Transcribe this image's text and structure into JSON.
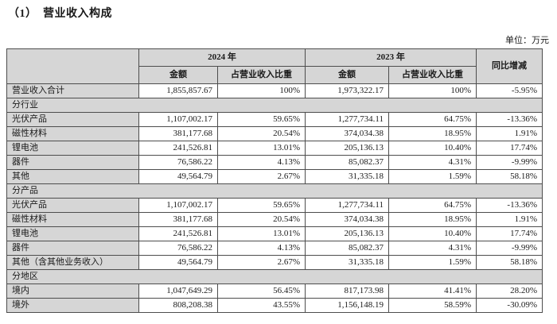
{
  "page": {
    "title": "（1）　营业收入构成",
    "unit_label": "单位：万元"
  },
  "table": {
    "header": {
      "year_2024": "2024 年",
      "year_2023": "2023 年",
      "amount": "金额",
      "ratio": "占营业收入比重",
      "yoy": "同比增减"
    },
    "rows": [
      {
        "kind": "data",
        "label": "营业收入合计",
        "a24": "1,855,857.67",
        "r24": "100%",
        "a23": "1,973,322.17",
        "r23": "100%",
        "yoy": "-5.95%"
      },
      {
        "kind": "section",
        "label": "分行业"
      },
      {
        "kind": "data",
        "label": "光伏产品",
        "a24": "1,107,002.17",
        "r24": "59.65%",
        "a23": "1,277,734.11",
        "r23": "64.75%",
        "yoy": "-13.36%"
      },
      {
        "kind": "data",
        "label": "磁性材料",
        "a24": "381,177.68",
        "r24": "20.54%",
        "a23": "374,034.38",
        "r23": "18.95%",
        "yoy": "1.91%"
      },
      {
        "kind": "data",
        "label": "锂电池",
        "a24": "241,526.81",
        "r24": "13.01%",
        "a23": "205,136.13",
        "r23": "10.40%",
        "yoy": "17.74%"
      },
      {
        "kind": "data",
        "label": "器件",
        "a24": "76,586.22",
        "r24": "4.13%",
        "a23": "85,082.37",
        "r23": "4.31%",
        "yoy": "-9.99%"
      },
      {
        "kind": "data",
        "label": "其他",
        "a24": "49,564.79",
        "r24": "2.67%",
        "a23": "31,335.18",
        "r23": "1.59%",
        "yoy": "58.18%"
      },
      {
        "kind": "section",
        "label": "分产品"
      },
      {
        "kind": "data",
        "label": "光伏产品",
        "a24": "1,107,002.17",
        "r24": "59.65%",
        "a23": "1,277,734.11",
        "r23": "64.75%",
        "yoy": "-13.36%"
      },
      {
        "kind": "data",
        "label": "磁性材料",
        "a24": "381,177.68",
        "r24": "20.54%",
        "a23": "374,034.38",
        "r23": "18.95%",
        "yoy": "1.91%"
      },
      {
        "kind": "data",
        "label": "锂电池",
        "a24": "241,526.81",
        "r24": "13.01%",
        "a23": "205,136.13",
        "r23": "10.40%",
        "yoy": "17.74%"
      },
      {
        "kind": "data",
        "label": "器件",
        "a24": "76,586.22",
        "r24": "4.13%",
        "a23": "85,082.37",
        "r23": "4.31%",
        "yoy": "-9.99%"
      },
      {
        "kind": "data",
        "label": "其他（含其他业务收入）",
        "a24": "49,564.79",
        "r24": "2.67%",
        "a23": "31,335.18",
        "r23": "1.59%",
        "yoy": "58.18%"
      },
      {
        "kind": "section",
        "label": "分地区"
      },
      {
        "kind": "data",
        "label": "境内",
        "a24": "1,047,649.29",
        "r24": "56.45%",
        "a23": "817,173.98",
        "r23": "41.41%",
        "yoy": "28.20%"
      },
      {
        "kind": "data",
        "label": "境外",
        "a24": "808,208.38",
        "r24": "43.55%",
        "a23": "1,156,148.19",
        "r23": "58.59%",
        "yoy": "-30.09%"
      }
    ]
  }
}
